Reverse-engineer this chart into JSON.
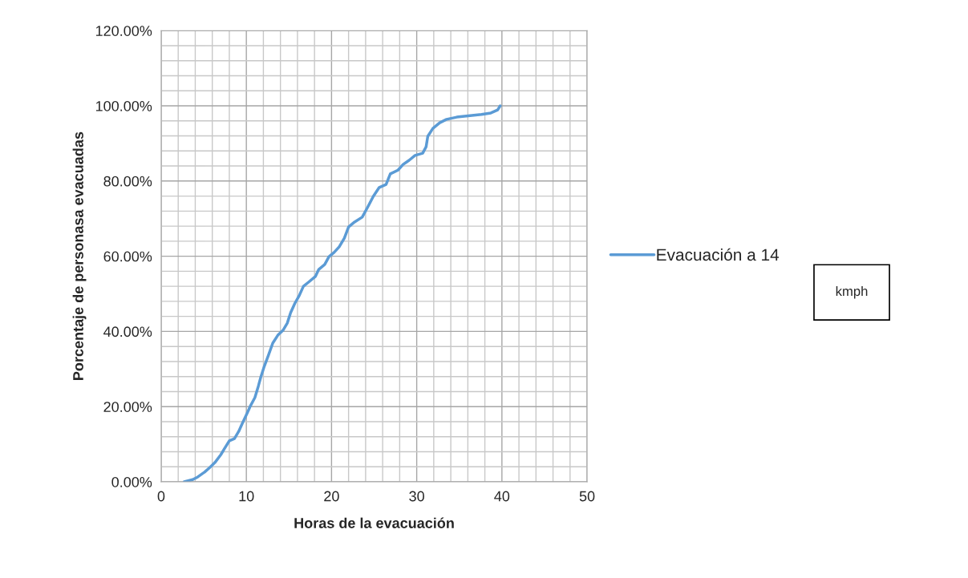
{
  "chart_data": {
    "type": "line",
    "xlabel": "Horas de la evacuación",
    "ylabel": "Porcentaje de personasa evacuadas",
    "annotations": [
      "kmph"
    ],
    "series": [
      {
        "name": "Evacuación a 14",
        "color": "#5b9bd5",
        "x": [
          2.7,
          3.7,
          4.3,
          5.1,
          5.7,
          6.3,
          7.0,
          7.4,
          8.0,
          8.6,
          9.1,
          9.5,
          10.1,
          10.5,
          11.0,
          11.4,
          11.7,
          12.1,
          12.6,
          13.1,
          13.7,
          14.3,
          14.8,
          15.2,
          15.7,
          16.2,
          16.7,
          17.3,
          18.1,
          18.5,
          19.2,
          19.7,
          20.3,
          20.9,
          21.5,
          22.0,
          22.7,
          23.6,
          24.3,
          24.9,
          25.6,
          26.4,
          26.9,
          27.8,
          28.4,
          29.1,
          29.8,
          30.7,
          31.1,
          31.3,
          31.9,
          32.7,
          33.5,
          34.7,
          37.6,
          38.7,
          39.5,
          39.8
        ],
        "values": [
          0,
          0.6,
          1.3,
          2.6,
          3.8,
          5.1,
          7.2,
          8.7,
          10.9,
          11.5,
          13.4,
          15.4,
          18.3,
          20.3,
          22.4,
          25.4,
          27.9,
          30.7,
          33.7,
          36.9,
          39.0,
          40.3,
          42.2,
          45.0,
          47.5,
          49.5,
          52.0,
          53.1,
          54.6,
          56.5,
          57.8,
          59.9,
          61.0,
          62.5,
          64.8,
          67.8,
          69.1,
          70.4,
          73.3,
          75.9,
          78.3,
          79.1,
          81.9,
          82.9,
          84.4,
          85.5,
          86.8,
          87.4,
          89.1,
          91.9,
          94.0,
          95.5,
          96.4,
          97.0,
          97.7,
          98.1,
          98.9,
          100
        ]
      }
    ],
    "xlim": [
      0,
      50
    ],
    "xticks": [
      0,
      10,
      20,
      30,
      40,
      50
    ],
    "ylim": [
      0,
      120
    ],
    "yticks": [
      {
        "value": 0,
        "label": "0.00%"
      },
      {
        "value": 20,
        "label": "20.00%"
      },
      {
        "value": 40,
        "label": "40.00%"
      },
      {
        "value": 60,
        "label": "60.00%"
      },
      {
        "value": 80,
        "label": "80.00%"
      },
      {
        "value": 100,
        "label": "100.00%"
      },
      {
        "value": 120,
        "label": "120.00%"
      }
    ],
    "grid": true,
    "legend": "right",
    "marker": "none",
    "line_style": "solid"
  }
}
